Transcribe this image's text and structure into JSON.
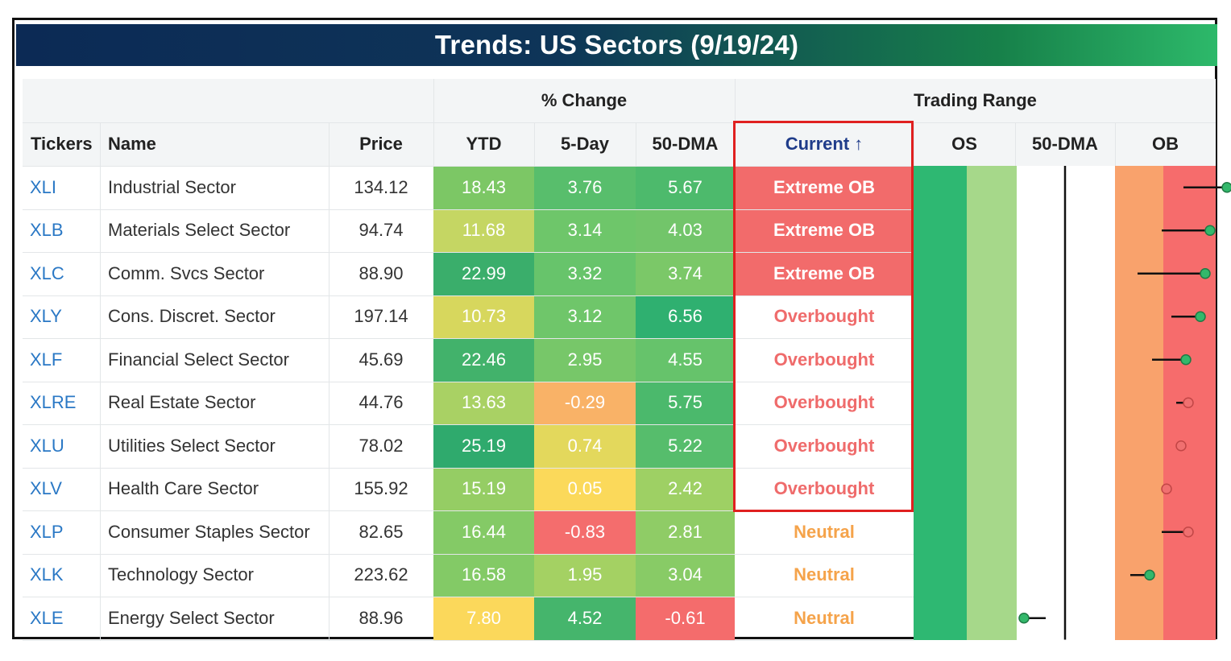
{
  "title": "Trends: US Sectors (9/19/24)",
  "group_headers": {
    "pct_change": "% Change",
    "trading_range": "Trading Range"
  },
  "columns": {
    "tickers": "Tickers",
    "name": "Name",
    "price": "Price",
    "ytd": "YTD",
    "five_day": "5-Day",
    "dma50": "50-DMA",
    "current": "Current ↑",
    "os": "OS",
    "range_dma": "50-DMA",
    "ob": "OB"
  },
  "colors": {
    "extreme_ob_bg": "#f26b6b",
    "extreme_ob_text": "#ffffff",
    "overbought_text": "#ef6b6b",
    "neutral_text": "#f5a34a",
    "os_band_dark": "#2eb872",
    "os_band_light": "#a6d88a",
    "ob_band_orange": "#f9a26c",
    "ob_band_red": "#f66c6c",
    "dot_green": "#33b86b",
    "dot_red": "#f07070"
  },
  "rows": [
    {
      "ticker": "XLI",
      "name": "Industrial Sector",
      "price": "134.12",
      "ytd": "18.43",
      "ytd_color": "#7cc765",
      "d5": "3.76",
      "d5_color": "#58be6c",
      "dma": "5.67",
      "dma_color": "#4dba6c",
      "current": "Extreme OB",
      "state": "extreme",
      "marker": {
        "from": 2.45,
        "to": 3.35,
        "dot": "green"
      }
    },
    {
      "ticker": "XLB",
      "name": "Materials Select Sector",
      "price": "94.74",
      "ytd": "11.68",
      "ytd_color": "#c5d663",
      "d5": "3.14",
      "d5_color": "#6ec66a",
      "dma": "4.03",
      "dma_color": "#72c56a",
      "current": "Extreme OB",
      "state": "extreme",
      "marker": {
        "from": 2.0,
        "to": 3.0,
        "dot": "green"
      }
    },
    {
      "ticker": "XLC",
      "name": "Comm. Svcs Sector",
      "price": "88.90",
      "ytd": "22.99",
      "ytd_color": "#3aae6b",
      "d5": "3.32",
      "d5_color": "#67c46b",
      "dma": "3.74",
      "dma_color": "#7bc868",
      "current": "Extreme OB",
      "state": "extreme",
      "marker": {
        "from": 1.5,
        "to": 2.9,
        "dot": "green"
      }
    },
    {
      "ticker": "XLY",
      "name": "Cons. Discret. Sector",
      "price": "197.14",
      "ytd": "10.73",
      "ytd_color": "#d7d75d",
      "d5": "3.12",
      "d5_color": "#6fc66a",
      "dma": "6.56",
      "dma_color": "#2fb070",
      "current": "Overbought",
      "state": "overbought",
      "marker": {
        "from": 2.2,
        "to": 2.8,
        "dot": "green"
      }
    },
    {
      "ticker": "XLF",
      "name": "Financial Select Sector",
      "price": "45.69",
      "ytd": "22.46",
      "ytd_color": "#42b26b",
      "d5": "2.95",
      "d5_color": "#77c769",
      "dma": "4.55",
      "dma_color": "#66c36b",
      "current": "Overbought",
      "state": "overbought",
      "marker": {
        "from": 1.8,
        "to": 2.5,
        "dot": "green"
      }
    },
    {
      "ticker": "XLRE",
      "name": "Real Estate Sector",
      "price": "44.76",
      "ytd": "13.63",
      "ytd_color": "#a9d164",
      "d5": "-0.29",
      "d5_color": "#f9b267",
      "dma": "5.75",
      "dma_color": "#4bb96c",
      "current": "Overbought",
      "state": "overbought",
      "marker": {
        "from": 2.3,
        "to": 2.55,
        "dot": "red"
      }
    },
    {
      "ticker": "XLU",
      "name": "Utilities Select Sector",
      "price": "78.02",
      "ytd": "25.19",
      "ytd_color": "#2faa6d",
      "d5": "0.74",
      "d5_color": "#e3d85c",
      "dma": "5.22",
      "dma_color": "#56bd6c",
      "current": "Overbought",
      "state": "overbought",
      "marker": {
        "from": 2.3,
        "to": 2.4,
        "dot": "red"
      }
    },
    {
      "ticker": "XLV",
      "name": "Health Care Sector",
      "price": "155.92",
      "ytd": "15.19",
      "ytd_color": "#95cd64",
      "d5": "0.05",
      "d5_color": "#fbd95a",
      "dma": "2.42",
      "dma_color": "#9ed064",
      "current": "Overbought",
      "state": "overbought",
      "marker": {
        "from": 2.05,
        "to": 2.1,
        "dot": "red"
      }
    },
    {
      "ticker": "XLP",
      "name": "Consumer Staples Sector",
      "price": "82.65",
      "ytd": "16.44",
      "ytd_color": "#84ca66",
      "d5": "-0.83",
      "d5_color": "#f46d6d",
      "dma": "2.81",
      "dma_color": "#8fcc66",
      "current": "Neutral",
      "state": "neutral",
      "marker": {
        "from": 2.0,
        "to": 2.55,
        "dot": "red"
      }
    },
    {
      "ticker": "XLK",
      "name": "Technology Sector",
      "price": "223.62",
      "ytd": "16.58",
      "ytd_color": "#83ca66",
      "d5": "1.95",
      "d5_color": "#a4d163",
      "dma": "3.04",
      "dma_color": "#88cb66",
      "current": "Neutral",
      "state": "neutral",
      "marker": {
        "from": 1.35,
        "to": 1.75,
        "dot": "green"
      }
    },
    {
      "ticker": "XLE",
      "name": "Energy Select Sector",
      "price": "88.96",
      "ytd": "7.80",
      "ytd_color": "#fbd85b",
      "d5": "4.52",
      "d5_color": "#45b56c",
      "dma": "-0.61",
      "dma_color": "#f46c6c",
      "current": "Neutral",
      "state": "neutral",
      "marker": {
        "from": -0.4,
        "to": -0.85,
        "dot": "green"
      }
    }
  ]
}
